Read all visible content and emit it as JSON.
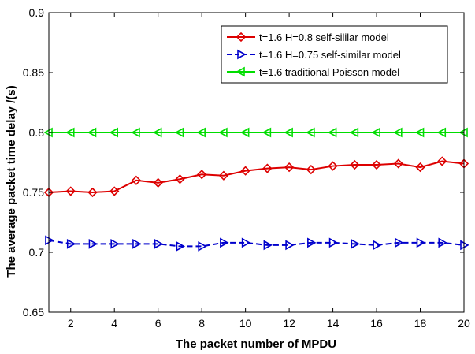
{
  "chart_data": {
    "type": "line",
    "title": "",
    "xlabel": "The packet number of  MPDU",
    "ylabel": "The average packet time delay /(s)",
    "xlim": [
      1,
      20
    ],
    "ylim": [
      0.65,
      0.9
    ],
    "xticks": [
      2,
      4,
      6,
      8,
      10,
      12,
      14,
      16,
      18,
      20
    ],
    "yticks": [
      0.65,
      0.7,
      0.75,
      0.8,
      0.85,
      0.9
    ],
    "ytick_labels": [
      "0.65",
      "0.7",
      "0.75",
      "0.8",
      "0.85",
      "0.9"
    ],
    "grid": false,
    "legend_position": "top-right",
    "x": [
      1,
      2,
      3,
      4,
      5,
      6,
      7,
      8,
      9,
      10,
      11,
      12,
      13,
      14,
      15,
      16,
      17,
      18,
      19,
      20
    ],
    "series": [
      {
        "name": "t=1.6 H=0.8 self-sililar model",
        "color": "#dd0000",
        "marker": "diamond",
        "line_style": "solid",
        "values": [
          0.75,
          0.751,
          0.75,
          0.751,
          0.76,
          0.758,
          0.761,
          0.765,
          0.764,
          0.768,
          0.77,
          0.771,
          0.769,
          0.772,
          0.773,
          0.773,
          0.774,
          0.771,
          0.776,
          0.774
        ]
      },
      {
        "name": "t=1.6 H=0.75 self-similar model",
        "color": "#0000cc",
        "marker": "triangle-right",
        "line_style": "dashed",
        "values": [
          0.71,
          0.707,
          0.707,
          0.707,
          0.707,
          0.707,
          0.705,
          0.705,
          0.708,
          0.708,
          0.706,
          0.706,
          0.708,
          0.708,
          0.707,
          0.706,
          0.708,
          0.708,
          0.708,
          0.706
        ]
      },
      {
        "name": "t=1.6 traditional Poisson model",
        "color": "#00dd00",
        "marker": "triangle-left",
        "line_style": "solid",
        "values": [
          0.8,
          0.8,
          0.8,
          0.8,
          0.8,
          0.8,
          0.8,
          0.8,
          0.8,
          0.8,
          0.8,
          0.8,
          0.8,
          0.8,
          0.8,
          0.8,
          0.8,
          0.8,
          0.8,
          0.8
        ]
      }
    ]
  }
}
